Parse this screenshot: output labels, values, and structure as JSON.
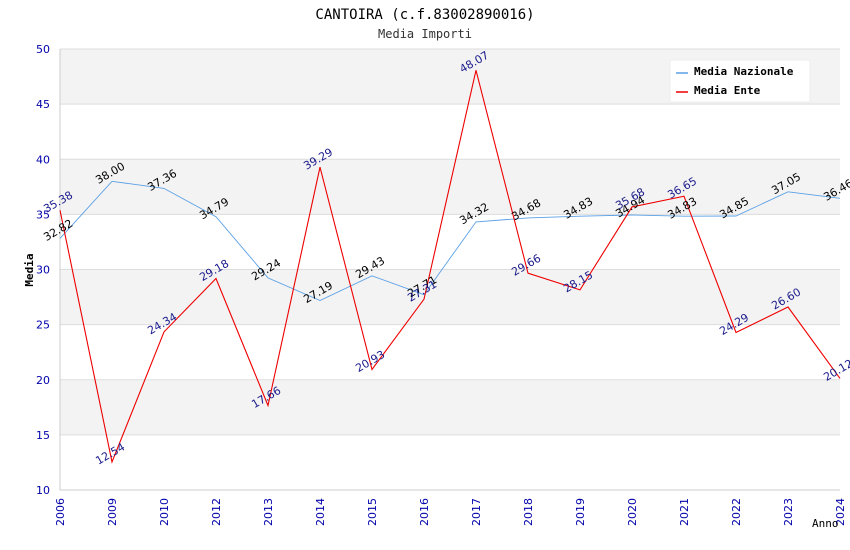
{
  "chart_data": {
    "type": "line",
    "title": "CANTOIRA (c.f.83002890016)",
    "subtitle": "Media Importi",
    "xlabel": "Anno",
    "ylabel": "Media",
    "ylim": [
      10,
      50
    ],
    "yticks": [
      "10",
      "15",
      "20",
      "25",
      "30",
      "35",
      "40",
      "45",
      "50"
    ],
    "categories": [
      "2006",
      "2009",
      "2010",
      "2012",
      "2013",
      "2014",
      "2015",
      "2016",
      "2017",
      "2018",
      "2019",
      "2020",
      "2021",
      "2022",
      "2023",
      "2024"
    ],
    "series": [
      {
        "name": "Media Nazionale",
        "color": "#5aa0e6",
        "values": [
          32.82,
          38.0,
          37.36,
          34.79,
          29.24,
          27.19,
          29.43,
          27.71,
          34.32,
          34.68,
          34.83,
          34.94,
          34.83,
          34.85,
          37.05,
          36.46
        ],
        "labels": [
          "32.82",
          "38.00",
          "37.36",
          "34.79",
          "29.24",
          "27.19",
          "29.43",
          "27.71",
          "34.32",
          "34.68",
          "34.83",
          "34.94",
          "34.83",
          "34.85",
          "37.05",
          "36.46"
        ]
      },
      {
        "name": "Media Ente",
        "color": "#ee0000",
        "values": [
          35.38,
          12.54,
          24.34,
          29.18,
          17.66,
          39.29,
          20.93,
          27.31,
          48.07,
          29.66,
          28.15,
          35.68,
          36.65,
          24.29,
          26.6,
          20.12
        ],
        "labels": [
          "35.38",
          "12.54",
          "24.34",
          "29.18",
          "17.66",
          "39.29",
          "20.93",
          "27.31",
          "48.07",
          "29.66",
          "28.15",
          "35.68",
          "36.65",
          "24.29",
          "26.60",
          "20.12"
        ]
      }
    ],
    "grid": true,
    "legend": "top-right"
  }
}
